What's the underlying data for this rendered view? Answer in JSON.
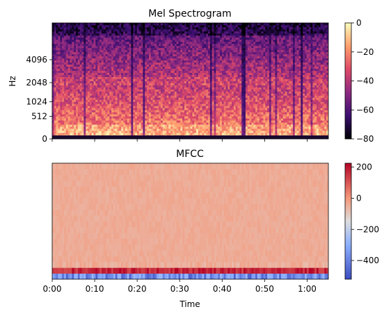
{
  "chart_data": [
    {
      "type": "heatmap",
      "title": "Mel Spectrogram",
      "xlabel": "",
      "ylabel": "Hz",
      "x_range_seconds": [
        0,
        65
      ],
      "y_tick_labels": [
        "0",
        "512",
        "1024",
        "2048",
        "4096"
      ],
      "y_scale": "mel",
      "x_tick_labels_shown": false,
      "colormap": "magma",
      "colorbar": {
        "range": [
          -80,
          0
        ],
        "tick_labels": [
          "0",
          "−20",
          "−40",
          "−60",
          "−80"
        ]
      }
    },
    {
      "type": "heatmap",
      "title": "MFCC",
      "xlabel": "Time",
      "ylabel": "",
      "x_range_seconds": [
        0,
        65
      ],
      "x_tick_labels": [
        "0:00",
        "0:10",
        "0:20",
        "0:30",
        "0:40",
        "0:50",
        "1:00"
      ],
      "y_tick_labels_shown": false,
      "colormap": "coolwarm",
      "colorbar": {
        "range": [
          -520,
          225
        ],
        "tick_labels": [
          "200",
          "0",
          "−200",
          "−400"
        ]
      }
    }
  ],
  "colors": {
    "magma": [
      "#000004",
      "#3b0f70",
      "#8c2981",
      "#de4968",
      "#fe9f6d",
      "#fcfdbf"
    ],
    "coolwarm": [
      "#3b4cc0",
      "#8db0fe",
      "#dddddd",
      "#f4987a",
      "#b40426"
    ]
  }
}
